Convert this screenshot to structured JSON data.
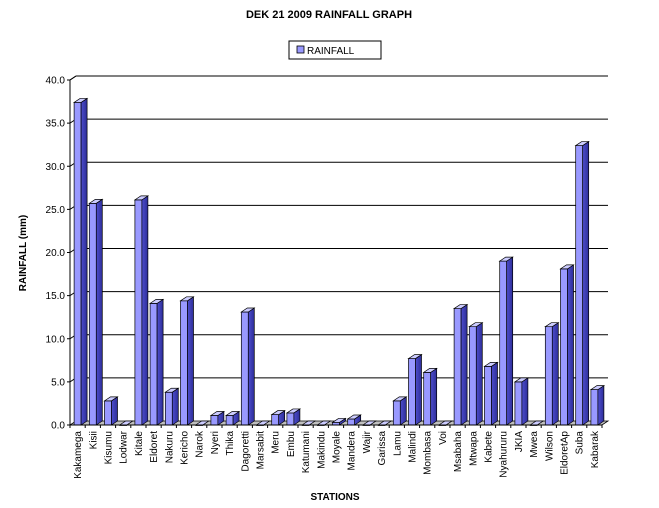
{
  "chart_data": {
    "type": "bar",
    "title": "DEK 21 2009 RAINFALL GRAPH",
    "xlabel": "STATIONS",
    "ylabel": "RAINFALL (mm)",
    "ylim": [
      0,
      40
    ],
    "yticks": [
      "0.0",
      "5.0",
      "10.0",
      "15.0",
      "20.0",
      "25.0",
      "30.0",
      "35.0",
      "40.0"
    ],
    "grid": true,
    "legend_position": "top-center",
    "bar_color": "#9999ff",
    "categories": [
      "Kakamega",
      "Kisii",
      "Kisumu",
      "Lodwar",
      "Kitale",
      "Eldoret",
      "Nakuru",
      "Kericho",
      "Narok",
      "Nyeri",
      "Thika",
      "Dagoretti",
      "Marsabit",
      "Meru",
      "Embu",
      "Katumani",
      "Makindu",
      "Moyale",
      "Mandera",
      "Wajir",
      "Garissa",
      "Lamu",
      "Malindi",
      "Mombasa",
      "Voi",
      "Msabaha",
      "Mtwapa",
      "Kabete",
      "Nyahururu",
      "JKIA",
      "Mwea",
      "Wilson",
      "EldoretAp",
      "Suba",
      "Kabarak"
    ],
    "series": [
      {
        "name": "RAINFALL",
        "values": [
          37.4,
          25.7,
          2.8,
          0.0,
          26.1,
          14.1,
          3.8,
          14.4,
          0.0,
          1.1,
          1.1,
          13.1,
          0.0,
          1.2,
          1.4,
          0.0,
          0.0,
          0.3,
          0.7,
          0.0,
          0.0,
          2.8,
          7.7,
          6.1,
          0.0,
          13.5,
          11.4,
          6.8,
          19.0,
          5.0,
          0.0,
          11.4,
          18.1,
          32.4,
          4.1
        ]
      }
    ]
  }
}
